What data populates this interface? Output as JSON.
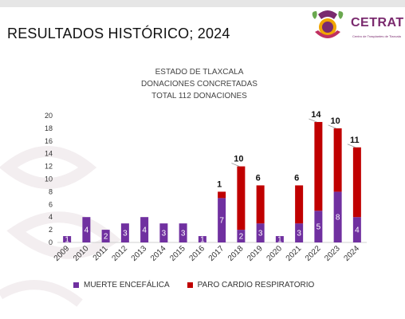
{
  "slide_title": "RESULTADOS HISTÓRICO; 2024",
  "logo": {
    "name": "CETRAT",
    "subtitle": "Centro de Trasplantes de Tlaxcala"
  },
  "colors": {
    "muerte": "#7030a0",
    "paro": "#c00000",
    "accent": "#7a2a6e"
  },
  "chart_data": {
    "type": "bar",
    "stacked": true,
    "title": [
      "ESTADO DE TLAXCALA",
      "DONACIONES CONCRETADAS",
      "TOTAL 112 DONACIONES"
    ],
    "categories": [
      "2009",
      "2010",
      "2011",
      "2012",
      "2013",
      "2014",
      "2015",
      "2016",
      "2017",
      "2018",
      "2019",
      "2020",
      "2021",
      "2022",
      "2023",
      "2024"
    ],
    "series": [
      {
        "name": "MUERTE ENCEFÁLICA",
        "values": [
          1,
          4,
          2,
          3,
          4,
          3,
          3,
          1,
          7,
          2,
          3,
          1,
          3,
          5,
          8,
          4
        ]
      },
      {
        "name": "PARO CARDIO RESPIRATORIO",
        "values": [
          0,
          0,
          0,
          0,
          0,
          0,
          0,
          0,
          1,
          10,
          6,
          0,
          6,
          14,
          10,
          11
        ]
      }
    ],
    "ylim": [
      0,
      20
    ],
    "yticks": [
      0,
      2,
      4,
      6,
      8,
      10,
      12,
      14,
      16,
      18,
      20
    ],
    "grid": false,
    "legend": "bottom"
  }
}
